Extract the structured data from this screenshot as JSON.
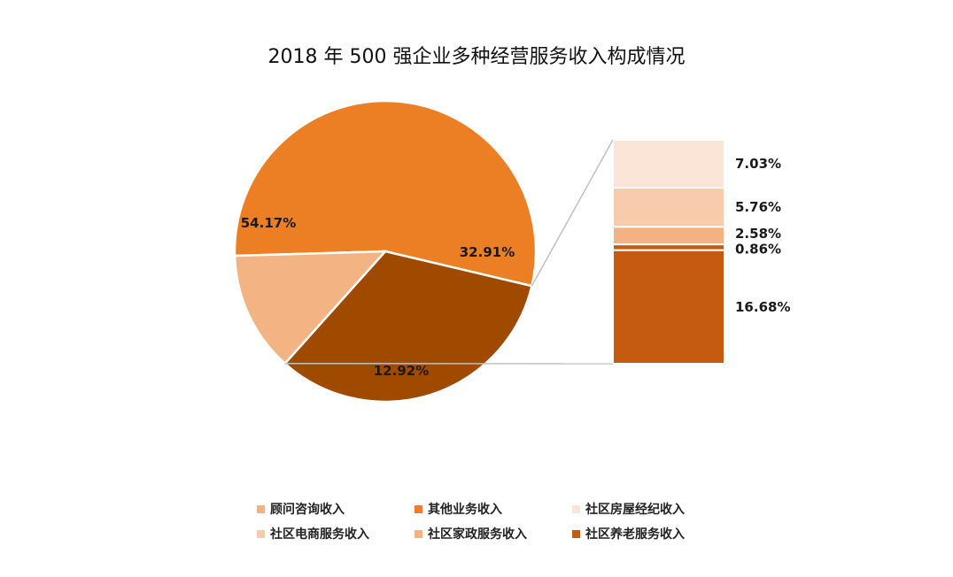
{
  "title": "2018 年 500 强企业多种经营服务收入构成情况",
  "chart_data": {
    "type": "pie",
    "pie": {
      "slices": [
        {
          "name": "其他业务收入",
          "value": 54.17,
          "label": "54.17%",
          "color": "#EC7F24"
        },
        {
          "name": "社区养老服务收入",
          "value": 32.91,
          "label": "32.91%",
          "color": "#A04A00",
          "breakout": true
        },
        {
          "name": "顾问咨询收入",
          "value": 12.92,
          "label": "12.92%",
          "color": "#F4B382"
        }
      ]
    },
    "breakout_bar": {
      "segments": [
        {
          "name": "社区房屋经纪收入",
          "value": 7.03,
          "label": "7.03%",
          "color": "#FBE5D6"
        },
        {
          "name": "社区电商服务收入",
          "value": 5.76,
          "label": "5.76%",
          "color": "#F8CBAD"
        },
        {
          "name": "社区家政服务收入",
          "value": 2.58,
          "label": "2.58%",
          "color": "#F4B183"
        },
        {
          "name": "社区养老服务收入",
          "value": 0.86,
          "label": "0.86%",
          "color": "#C55A11"
        },
        {
          "name": "社区养老服务收入",
          "value": 16.68,
          "label": "16.68%",
          "color": "#C55A11"
        }
      ]
    },
    "legend": {
      "placement": "bottom",
      "items": [
        {
          "name": "顾问咨询收入",
          "color": "#F4B183"
        },
        {
          "name": "其他业务收入",
          "color": "#ED7D31"
        },
        {
          "name": "社区房屋经纪收入",
          "color": "#FBE5D6"
        },
        {
          "name": "社区电商服务收入",
          "color": "#F8CBAD"
        },
        {
          "name": "社区家政服务收入",
          "color": "#F4B183"
        },
        {
          "name": "社区养老服务收入",
          "color": "#C55A11"
        }
      ]
    }
  }
}
